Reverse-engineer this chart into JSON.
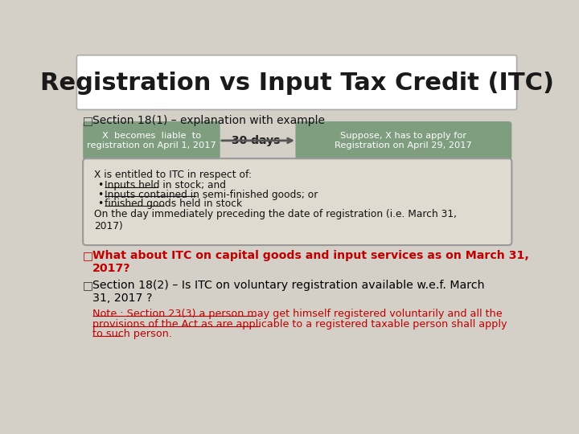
{
  "title": "Registration vs Input Tax Credit (ITC)",
  "title_fontsize": 22,
  "title_bg": "#ffffff",
  "slide_bg": "#d4d0c8",
  "section1_label": "Section 18(1) – explanation with example",
  "box1_text": "X  becomes  liable  to\nregistration on April 1, 2017",
  "box_arrow_label": "30 days",
  "box2_text": "Suppose, X has to apply for\nRegistration on April 29, 2017",
  "box_color": "#7f9e80",
  "box_text_color": "#ffffff",
  "itc_box_text_line1": "X is entitled to ITC in respect of:",
  "itc_box_bullets": [
    "Inputs held in stock; and",
    "Inputs contained in semi-finished goods; or",
    "finished goods held in stock"
  ],
  "itc_box_footer": "On the day immediately preceding the date of registration (i.e. March 31,\n2017)",
  "itc_box_bg": "#e0dbd0",
  "itc_box_border": "#999999",
  "q2_text": "What about ITC on capital goods and input services as on March 31,\n2017?",
  "q2_color": "#c00000",
  "q3_text": "Section 18(2) – Is ITC on voluntary registration available w.e.f. March\n31, 2017 ?",
  "q3_color": "#000000",
  "note_text": "Note : Section 23(3) a person may get himself registered voluntarily and all the\nprovisions of the Act as are applicable to a registered taxable person shall apply\nto such person.",
  "note_color": "#c00000",
  "bullet_underline": [
    true,
    true,
    true
  ],
  "font_family": "DejaVu Sans"
}
